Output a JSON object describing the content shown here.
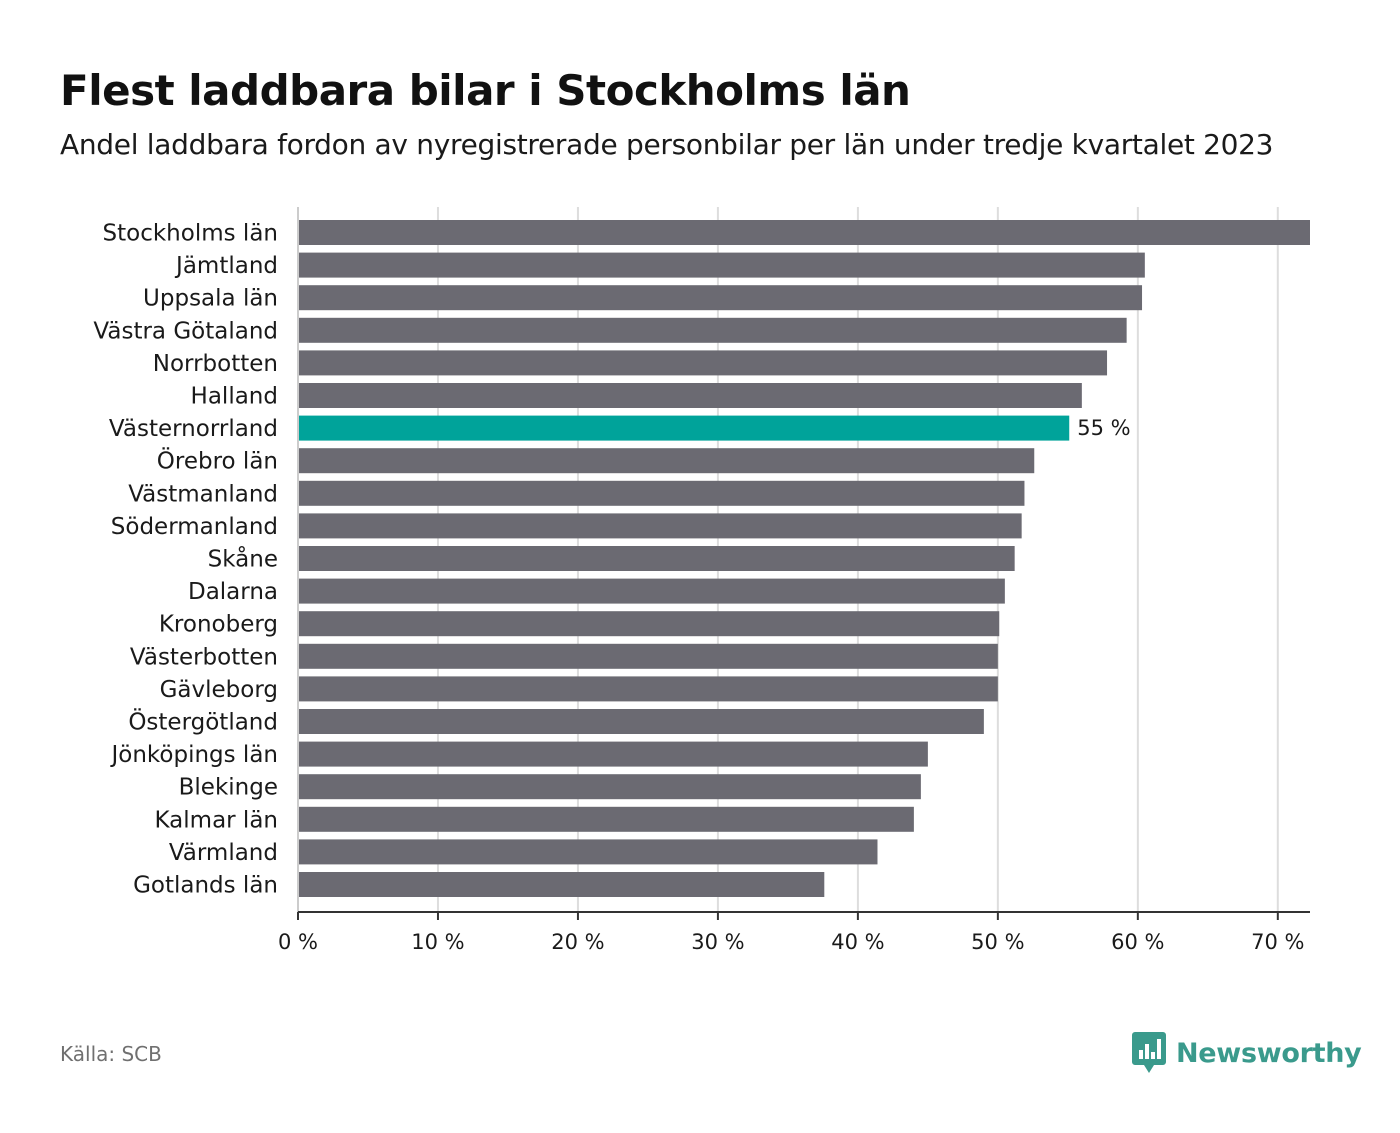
{
  "title": "Flest laddbara bilar i Stockholms län",
  "subtitle": "Andel laddbara fordon av nyregistrerade personbilar per län under tredje kvartalet 2023",
  "source": "Källa: SCB",
  "brand": "Newsworthy",
  "colors": {
    "bar": "#6b6a72",
    "highlight": "#00a39a",
    "grid": "#dddddd",
    "axis": "#333333",
    "brand": "#3a9a8c"
  },
  "chart_data": {
    "type": "bar",
    "orientation": "horizontal",
    "title": "Flest laddbara bilar i Stockholms län",
    "xlabel": "",
    "ylabel": "",
    "xlim": [
      0,
      72.3
    ],
    "ticks": [
      0,
      10,
      20,
      30,
      40,
      50,
      60,
      70
    ],
    "tick_labels": [
      "0 %",
      "10 %",
      "20 %",
      "30 %",
      "40 %",
      "50 %",
      "60 %",
      "70 %"
    ],
    "grid": true,
    "categories": [
      "Stockholms län",
      "Jämtland",
      "Uppsala län",
      "Västra Götaland",
      "Norrbotten",
      "Halland",
      "Västernorrland",
      "Örebro län",
      "Västmanland",
      "Södermanland",
      "Skåne",
      "Dalarna",
      "Kronoberg",
      "Västerbotten",
      "Gävleborg",
      "Östergötland",
      "Jönköpings län",
      "Blekinge",
      "Kalmar län",
      "Värmland",
      "Gotlands län"
    ],
    "values": [
      72.3,
      60.5,
      60.3,
      59.2,
      57.8,
      56.0,
      55.1,
      52.6,
      51.9,
      51.7,
      51.2,
      50.5,
      50.1,
      50.0,
      50.0,
      49.0,
      45.0,
      44.5,
      44.0,
      41.4,
      37.6
    ],
    "highlight_index": 6,
    "highlight_label": "55 %"
  }
}
